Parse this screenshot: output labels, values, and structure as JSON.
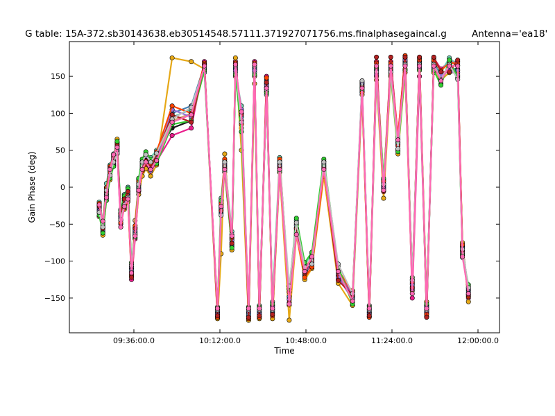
{
  "chart_data": {
    "type": "line",
    "title": "G table: 15A-372.sb30143638.eb30514548.57111.371927071756.ms.finalphasegaincal.g",
    "title_right": "Antenna='ea18'",
    "xlabel": "Time",
    "ylabel": "Gain Phase (deg)",
    "x_unit": "minutes since 09:00:00",
    "xlim": [
      9,
      189
    ],
    "ylim": [
      -197,
      197
    ],
    "x_ticks": [
      {
        "value": 36,
        "label": "09:36:00.0"
      },
      {
        "value": 72,
        "label": "10:12:00.0"
      },
      {
        "value": 108,
        "label": "10:48:00.0"
      },
      {
        "value": 144,
        "label": "11:24:00.0"
      },
      {
        "value": 180,
        "label": "12:00:00.0"
      }
    ],
    "y_ticks": [
      {
        "value": 150,
        "label": "150"
      },
      {
        "value": 100,
        "label": "100"
      },
      {
        "value": 50,
        "label": "50"
      },
      {
        "value": 0,
        "label": "0"
      },
      {
        "value": -50,
        "label": "−50"
      },
      {
        "value": -100,
        "label": "−100"
      },
      {
        "value": -150,
        "label": "−150"
      }
    ],
    "grid": false,
    "legend": "none",
    "times": [
      21.5,
      23.0,
      24.5,
      26.0,
      27.5,
      29.0,
      30.5,
      32.0,
      33.5,
      35.0,
      36.5,
      38.0,
      39.5,
      41.0,
      43.0,
      45.5,
      52.0,
      60.0,
      65.5,
      71.0,
      72.5,
      74.0,
      77.0,
      78.5,
      81.0,
      84.0,
      86.5,
      88.5,
      91.5,
      94.0,
      97.0,
      101.0,
      104.0,
      107.5,
      110.5,
      115.5,
      121.5,
      127.5,
      131.5,
      134.5,
      137.5,
      140.5,
      143.5,
      146.5,
      149.5,
      152.5,
      155.5,
      158.5,
      161.5,
      164.5,
      168.0,
      171.5,
      173.5,
      176.0
    ],
    "series": [
      {
        "color": "#1a1a1a",
        "values": [
          -25,
          -60,
          -10,
          25,
          40,
          55,
          -40,
          -20,
          -10,
          -110,
          -60,
          0,
          30,
          40,
          25,
          45,
          80,
          90,
          165,
          -170,
          -20,
          30,
          -75,
          160,
          100,
          -180,
          160,
          -175,
          130,
          -170,
          35,
          -150,
          -60,
          -120,
          -100,
          30,
          -120,
          -150,
          140,
          -170,
          160,
          0,
          165,
          60,
          170,
          -130,
          165,
          -160,
          170,
          150,
          160,
          160,
          -80,
          -140
        ]
      },
      {
        "color": "#d4a373",
        "values": [
          -40,
          -50,
          0,
          20,
          30,
          50,
          -35,
          -15,
          -5,
          -115,
          -45,
          5,
          25,
          35,
          30,
          40,
          90,
          100,
          160,
          -175,
          -30,
          20,
          -80,
          150,
          80,
          -170,
          150,
          -165,
          140,
          -160,
          25,
          -140,
          -50,
          -110,
          -95,
          20,
          -125,
          -140,
          130,
          -175,
          150,
          10,
          155,
          50,
          160,
          -135,
          160,
          -165,
          160,
          140,
          165,
          150,
          -90,
          -145
        ]
      },
      {
        "color": "#e91e8c",
        "values": [
          -30,
          -55,
          -5,
          15,
          35,
          45,
          -50,
          -25,
          -15,
          -125,
          -70,
          -5,
          20,
          30,
          20,
          35,
          70,
          80,
          170,
          -175,
          -25,
          25,
          -70,
          170,
          90,
          -175,
          170,
          -170,
          150,
          -165,
          30,
          -160,
          -55,
          -115,
          -105,
          25,
          -115,
          -145,
          130,
          -165,
          170,
          -5,
          170,
          70,
          175,
          -150,
          150,
          -170,
          175,
          160,
          170,
          170,
          -85,
          -150
        ]
      },
      {
        "color": "#66cdaa",
        "values": [
          -20,
          -45,
          5,
          30,
          45,
          60,
          -30,
          -10,
          0,
          -105,
          -55,
          10,
          35,
          45,
          40,
          50,
          95,
          105,
          155,
          -165,
          -15,
          35,
          -60,
          155,
          110,
          -165,
          155,
          -160,
          125,
          -155,
          40,
          -145,
          -45,
          -105,
          -90,
          35,
          -110,
          -155,
          135,
          -160,
          155,
          5,
          160,
          65,
          165,
          -125,
          170,
          -175,
          165,
          155,
          175,
          165,
          -95,
          -135
        ]
      },
      {
        "color": "#e6a817",
        "values": [
          -35,
          -65,
          -15,
          10,
          30,
          65,
          -45,
          -30,
          -20,
          -120,
          -65,
          -10,
          15,
          25,
          15,
          30,
          175,
          170,
          160,
          -178,
          -90,
          45,
          -85,
          175,
          50,
          -180,
          140,
          -178,
          135,
          -178,
          20,
          -180,
          -65,
          -125,
          -110,
          15,
          -130,
          -160,
          125,
          -170,
          145,
          -15,
          150,
          45,
          155,
          -140,
          175,
          -155,
          155,
          145,
          155,
          155,
          -75,
          -155
        ]
      },
      {
        "color": "#4682b4",
        "values": [
          -28,
          -58,
          -8,
          22,
          38,
          52,
          -42,
          -18,
          -8,
          -112,
          -62,
          2,
          28,
          38,
          28,
          42,
          100,
          110,
          165,
          -168,
          -35,
          28,
          -78,
          162,
          95,
          -172,
          162,
          -168,
          145,
          -168,
          32,
          -148,
          -58,
          -118,
          -98,
          28,
          -118,
          -148,
          138,
          -168,
          158,
          2,
          162,
          58,
          168,
          -132,
          168,
          -162,
          168,
          148,
          162,
          158,
          -82,
          -142
        ]
      },
      {
        "color": "#9370db",
        "values": [
          -32,
          -52,
          -12,
          18,
          32,
          48,
          -38,
          -22,
          -12,
          -108,
          -58,
          -2,
          32,
          42,
          22,
          38,
          105,
          95,
          160,
          -172,
          -28,
          32,
          -72,
          158,
          105,
          -168,
          158,
          -172,
          138,
          -162,
          28,
          -152,
          -52,
          -112,
          -102,
          32,
          -122,
          -152,
          142,
          -172,
          152,
          -2,
          158,
          62,
          172,
          -138,
          162,
          -168,
          162,
          152,
          158,
          152,
          -88,
          -138
        ]
      },
      {
        "color": "#ff4500",
        "values": [
          -22,
          -48,
          -2,
          28,
          42,
          58,
          -48,
          -28,
          -18,
          -118,
          -52,
          8,
          22,
          32,
          32,
          48,
          110,
          100,
          168,
          -176,
          -22,
          38,
          -68,
          168,
          85,
          -178,
          168,
          -176,
          148,
          -174,
          38,
          -142,
          -62,
          -122,
          -108,
          22,
          -112,
          -142,
          128,
          -176,
          168,
          8,
          168,
          68,
          178,
          -128,
          172,
          -172,
          172,
          158,
          168,
          168,
          -78,
          -148
        ]
      },
      {
        "color": "#32cd32",
        "values": [
          -38,
          -62,
          -18,
          12,
          28,
          62,
          -32,
          -12,
          -2,
          -102,
          -68,
          12,
          38,
          48,
          38,
          32,
          85,
          90,
          158,
          -162,
          -18,
          22,
          -82,
          152,
          75,
          -162,
          152,
          -162,
          128,
          -158,
          22,
          -138,
          -42,
          -102,
          -88,
          38,
          -108,
          -158,
          132,
          -162,
          162,
          12,
          152,
          48,
          158,
          -122,
          158,
          -158,
          158,
          138,
          172,
          148,
          -92,
          -132
        ]
      },
      {
        "color": "#b22222",
        "values": [
          -26,
          -56,
          -6,
          26,
          36,
          56,
          -36,
          -16,
          -6,
          -122,
          -56,
          -6,
          26,
          36,
          26,
          44,
          98,
          88,
          166,
          -174,
          -32,
          26,
          -76,
          166,
          98,
          -176,
          166,
          -174,
          142,
          -172,
          26,
          -156,
          -56,
          -116,
          -96,
          26,
          -126,
          -146,
          136,
          -174,
          176,
          -6,
          176,
          56,
          176,
          -136,
          176,
          -176,
          176,
          156,
          156,
          172,
          -86,
          -146
        ]
      },
      {
        "color": "#c0c0c0",
        "values": [
          -34,
          -54,
          -4,
          16,
          34,
          46,
          -44,
          -24,
          -14,
          -106,
          -64,
          4,
          34,
          44,
          34,
          46,
          92,
          108,
          162,
          -166,
          -38,
          34,
          -64,
          164,
          88,
          -166,
          164,
          -166,
          132,
          -166,
          34,
          -134,
          -48,
          -108,
          -104,
          34,
          -104,
          -144,
          144,
          -166,
          156,
          4,
          156,
          52,
          166,
          -126,
          166,
          -166,
          166,
          146,
          166,
          146,
          -84,
          -136
        ]
      },
      {
        "color": "#ff69b4",
        "values": [
          -24,
          -46,
          -14,
          24,
          44,
          54,
          -54,
          -26,
          -16,
          -116,
          -66,
          -4,
          24,
          34,
          24,
          36,
          88,
          98,
          164,
          -164,
          -26,
          24,
          -66,
          166,
          102,
          -164,
          166,
          -164,
          134,
          -164,
          24,
          -158,
          -64,
          -114,
          -94,
          24,
          -114,
          -154,
          134,
          -164,
          164,
          -4,
          164,
          64,
          164,
          -144,
          164,
          -164,
          164,
          144,
          164,
          164,
          -94,
          -144
        ]
      }
    ]
  }
}
